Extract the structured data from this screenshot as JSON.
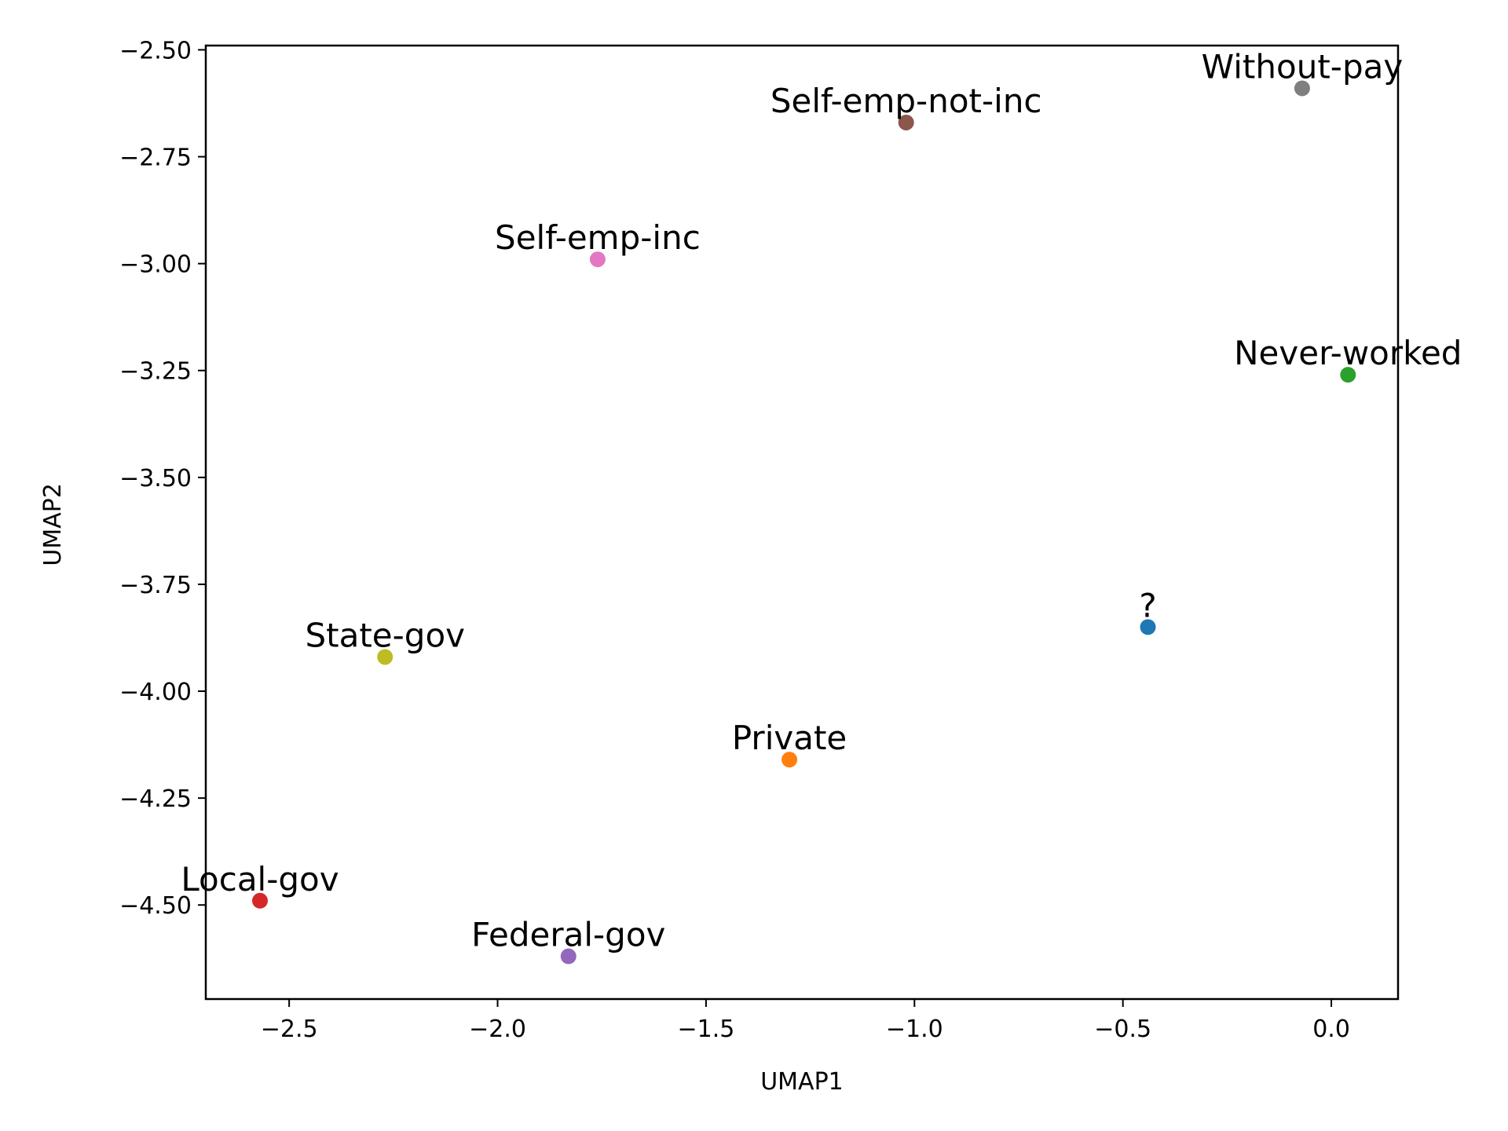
{
  "chart_data": {
    "type": "scatter",
    "title": "",
    "xlabel": "UMAP1",
    "ylabel": "UMAP2",
    "xlim": [
      -2.7,
      0.16
    ],
    "ylim": [
      -4.72,
      -2.49
    ],
    "grid": false,
    "legend": "none",
    "x_ticks": [
      -2.5,
      -2.0,
      -1.5,
      -1.0,
      -0.5,
      0.0
    ],
    "x_tick_labels": [
      "−2.5",
      "−2.0",
      "−1.5",
      "−1.0",
      "−0.5",
      "0.0"
    ],
    "y_ticks": [
      -2.5,
      -2.75,
      -3.0,
      -3.25,
      -3.5,
      -3.75,
      -4.0,
      -4.25,
      -4.5
    ],
    "y_tick_labels": [
      "−2.50",
      "−2.75",
      "−3.00",
      "−3.25",
      "−3.50",
      "−3.75",
      "−4.00",
      "−4.25",
      "−4.50"
    ],
    "points": [
      {
        "label": "?",
        "x": -0.44,
        "y": -3.85,
        "color": "#1f77b4"
      },
      {
        "label": "Private",
        "x": -1.3,
        "y": -4.16,
        "color": "#ff7f0e"
      },
      {
        "label": "Never-worked",
        "x": 0.04,
        "y": -3.26,
        "color": "#2ca02c"
      },
      {
        "label": "Local-gov",
        "x": -2.57,
        "y": -4.49,
        "color": "#d62728"
      },
      {
        "label": "Federal-gov",
        "x": -1.83,
        "y": -4.62,
        "color": "#9467bd"
      },
      {
        "label": "Self-emp-not-inc",
        "x": -1.02,
        "y": -2.67,
        "color": "#8c564b"
      },
      {
        "label": "Self-emp-inc",
        "x": -1.76,
        "y": -2.99,
        "color": "#e377c2"
      },
      {
        "label": "Without-pay",
        "x": -0.07,
        "y": -2.59,
        "color": "#7f7f7f"
      },
      {
        "label": "State-gov",
        "x": -2.27,
        "y": -3.92,
        "color": "#bcbd22"
      }
    ]
  }
}
